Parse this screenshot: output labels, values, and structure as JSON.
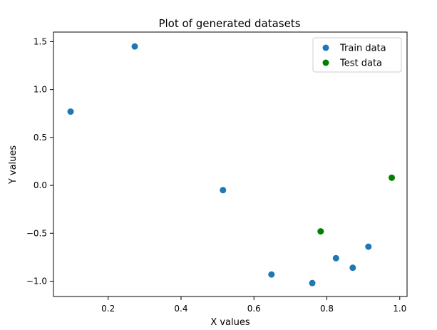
{
  "chart_data": {
    "type": "scatter",
    "title": "Plot of generated datasets",
    "xlabel": "X values",
    "ylabel": "Y values",
    "xlim": [
      0.05,
      1.02
    ],
    "ylim": [
      -1.16,
      1.6
    ],
    "xticks": [
      {
        "value": 0.2,
        "label": "0.2"
      },
      {
        "value": 0.4,
        "label": "0.4"
      },
      {
        "value": 0.6,
        "label": "0.6"
      },
      {
        "value": 0.8,
        "label": "0.8"
      },
      {
        "value": 1.0,
        "label": "1.0"
      }
    ],
    "yticks": [
      {
        "value": -1.0,
        "label": "−1.0"
      },
      {
        "value": -0.5,
        "label": "−0.5"
      },
      {
        "value": 0.0,
        "label": "0.0"
      },
      {
        "value": 0.5,
        "label": "0.5"
      },
      {
        "value": 1.0,
        "label": "1.0"
      },
      {
        "value": 1.5,
        "label": "1.5"
      }
    ],
    "grid": false,
    "legend_position": "top-right",
    "series": [
      {
        "name": "Train data",
        "color": "#1f77b4",
        "points": [
          {
            "x": 0.097,
            "y": 0.77
          },
          {
            "x": 0.273,
            "y": 1.45
          },
          {
            "x": 0.515,
            "y": -0.05
          },
          {
            "x": 0.648,
            "y": -0.93
          },
          {
            "x": 0.76,
            "y": -1.02
          },
          {
            "x": 0.825,
            "y": -0.76
          },
          {
            "x": 0.871,
            "y": -0.86
          },
          {
            "x": 0.914,
            "y": -0.64
          }
        ]
      },
      {
        "name": "Test data",
        "color": "#008000",
        "points": [
          {
            "x": 0.783,
            "y": -0.48
          },
          {
            "x": 0.978,
            "y": 0.08
          }
        ]
      }
    ]
  }
}
